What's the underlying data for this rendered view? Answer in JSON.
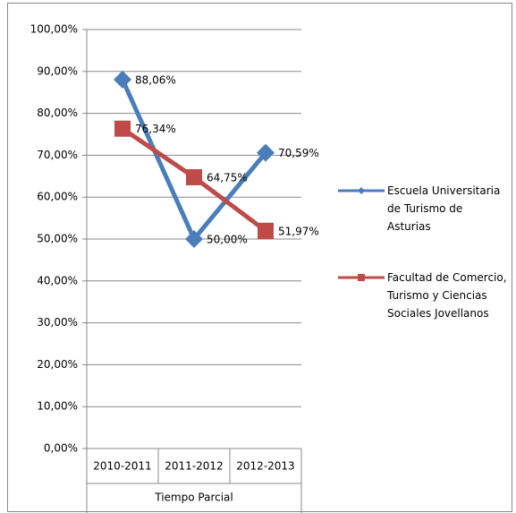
{
  "chart_data": {
    "type": "line",
    "categories": [
      "2010-2011",
      "2011-2012",
      "2012-2013"
    ],
    "group_label": "Tiempo Parcial",
    "series": [
      {
        "name": "Escuela Universitaria de Turismo de Asturias",
        "color": "#4a7ebb",
        "marker": "diamond",
        "values": [
          88.06,
          50.0,
          70.59
        ],
        "value_labels": [
          "88,06%",
          "50,00%",
          "70,59%"
        ]
      },
      {
        "name": "Facultad de Comercio, Turismo y Ciencias Sociales Jovellanos",
        "color": "#be4b48",
        "marker": "square",
        "values": [
          76.34,
          64.75,
          51.97
        ],
        "value_labels": [
          "76,34%",
          "64,75%",
          "51,97%"
        ]
      }
    ],
    "ylim": [
      0,
      100
    ],
    "yticks": [
      {
        "value": 0,
        "label": "0,00%"
      },
      {
        "value": 10,
        "label": "10,00%"
      },
      {
        "value": 20,
        "label": "20,00%"
      },
      {
        "value": 30,
        "label": "30,00%"
      },
      {
        "value": 40,
        "label": "40,00%"
      },
      {
        "value": 50,
        "label": "50,00%"
      },
      {
        "value": 60,
        "label": "60,00%"
      },
      {
        "value": 70,
        "label": "70,00%"
      },
      {
        "value": 80,
        "label": "80,00%"
      },
      {
        "value": 90,
        "label": "90,00%"
      },
      {
        "value": 100,
        "label": "100,00%"
      }
    ],
    "grid": true,
    "legend": "right"
  }
}
